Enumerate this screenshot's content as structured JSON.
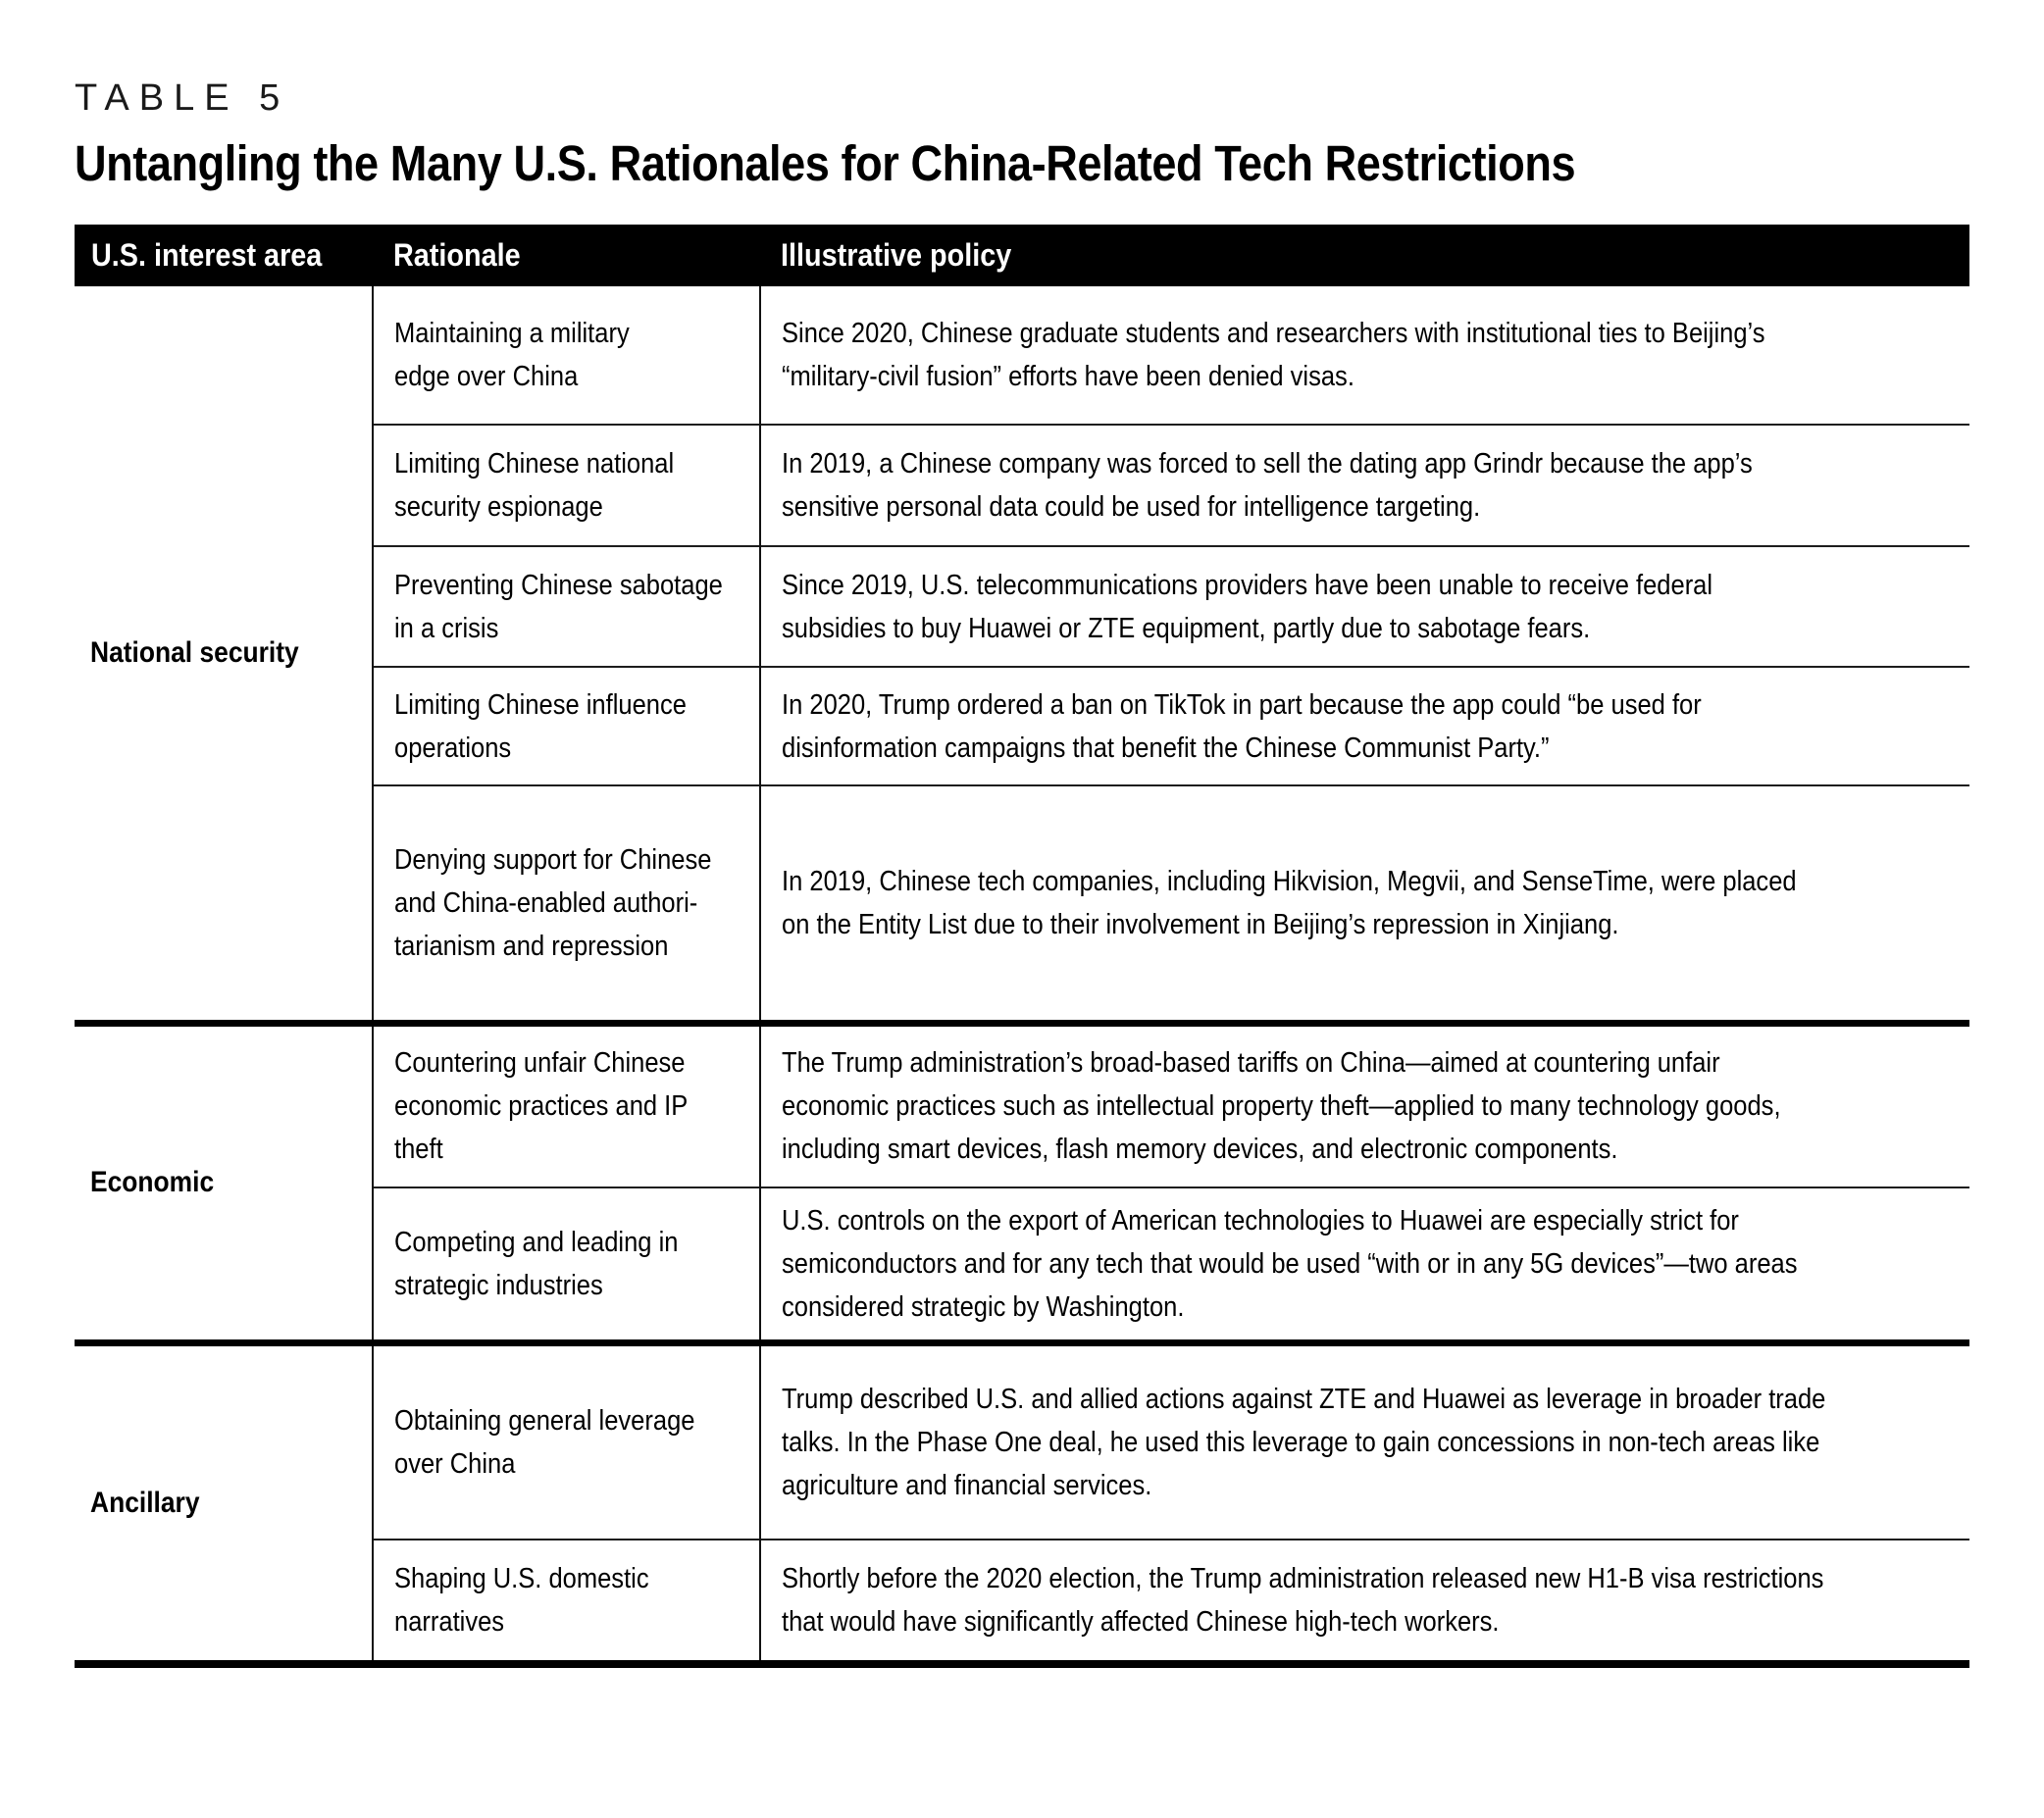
{
  "table_label": "TABLE 5",
  "title": "Untangling the Many U.S. Rationales for China-Related Tech Restrictions",
  "columns": {
    "area": "U.S. interest area",
    "rationale": "Rationale",
    "policy": "Illustrative policy"
  },
  "colors": {
    "header_bg": "#000000",
    "header_text": "#ffffff",
    "body_text": "#000000",
    "rule_thin": "#1d1d1d",
    "rule_thick": "#000000"
  },
  "groups": [
    {
      "area": "National security",
      "rows": [
        {
          "rationale": "Maintaining a military\nedge over China",
          "policy": "Since 2020, Chinese graduate students and researchers with institutional ties to Beijing’s\n“military-civil fusion” efforts have been denied visas."
        },
        {
          "rationale": "Limiting Chinese national\nsecurity espionage",
          "policy": "In 2019, a Chinese company was forced to sell the dating app Grindr because the app’s\nsensitive personal data could be used for intelligence targeting."
        },
        {
          "rationale": "Preventing Chinese sabotage\nin a crisis",
          "policy": "Since 2019, U.S. telecommunications providers have been unable to receive federal\nsubsidies to buy Huawei or ZTE equipment, partly due to sabotage fears."
        },
        {
          "rationale": "Limiting Chinese influence\noperations",
          "policy": "In 2020, Trump ordered a ban on TikTok in part because the app could “be used for\ndisinformation campaigns that benefit the Chinese Communist Party.”"
        },
        {
          "rationale": "Denying support for Chinese\nand China-enabled authori-\ntarianism and repression",
          "policy": "In 2019, Chinese tech companies, including Hikvision, Megvii, and SenseTime, were placed\non the Entity List due to their involvement in Beijing’s repression in Xinjiang."
        }
      ]
    },
    {
      "area": "Economic",
      "rows": [
        {
          "rationale": "Countering unfair Chinese\neconomic practices and IP\ntheft",
          "policy": "The Trump administration’s broad-based tariffs on China—aimed at countering unfair\neconomic practices such as intellectual property theft—applied to many technology goods,\nincluding smart devices, flash memory devices, and electronic components."
        },
        {
          "rationale": "Competing and leading in\nstrategic industries",
          "policy": "U.S. controls on the export of American technologies to Huawei are especially strict for\nsemiconductors and for any tech that would be used “with or in any 5G devices”—two areas\nconsidered strategic by Washington."
        }
      ]
    },
    {
      "area": "Ancillary",
      "rows": [
        {
          "rationale": "Obtaining general leverage\nover China",
          "policy": "Trump described U.S. and allied actions against ZTE and Huawei as leverage in broader trade\ntalks. In the Phase One deal, he used this leverage to gain concessions in non-tech areas like\nagriculture and financial services."
        },
        {
          "rationale": "Shaping U.S. domestic\nnarratives",
          "policy": "Shortly before the 2020 election, the Trump administration released new H1-B visa restrictions\nthat would have significantly affected Chinese high-tech workers."
        }
      ]
    }
  ]
}
